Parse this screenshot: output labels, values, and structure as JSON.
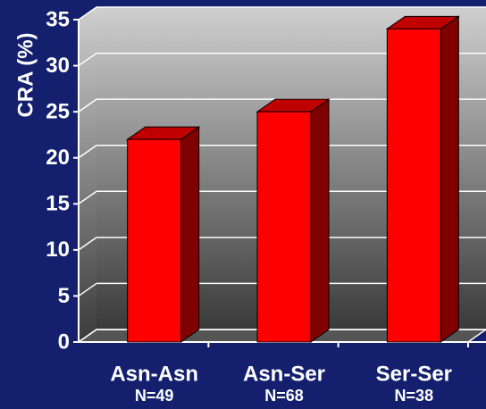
{
  "chart_data": {
    "type": "bar3d",
    "y_label": "CRA (%)",
    "categories": [
      "Asn-Asn",
      "Asn-Ser",
      "Ser-Ser"
    ],
    "sublabels": [
      "N=49",
      "N=68",
      "N=38"
    ],
    "values": [
      22,
      25,
      34
    ],
    "color": "#ff0000",
    "ylim": [
      0,
      35
    ],
    "yticks": [
      0,
      5,
      10,
      15,
      20,
      25,
      30,
      35
    ],
    "grid": true
  }
}
